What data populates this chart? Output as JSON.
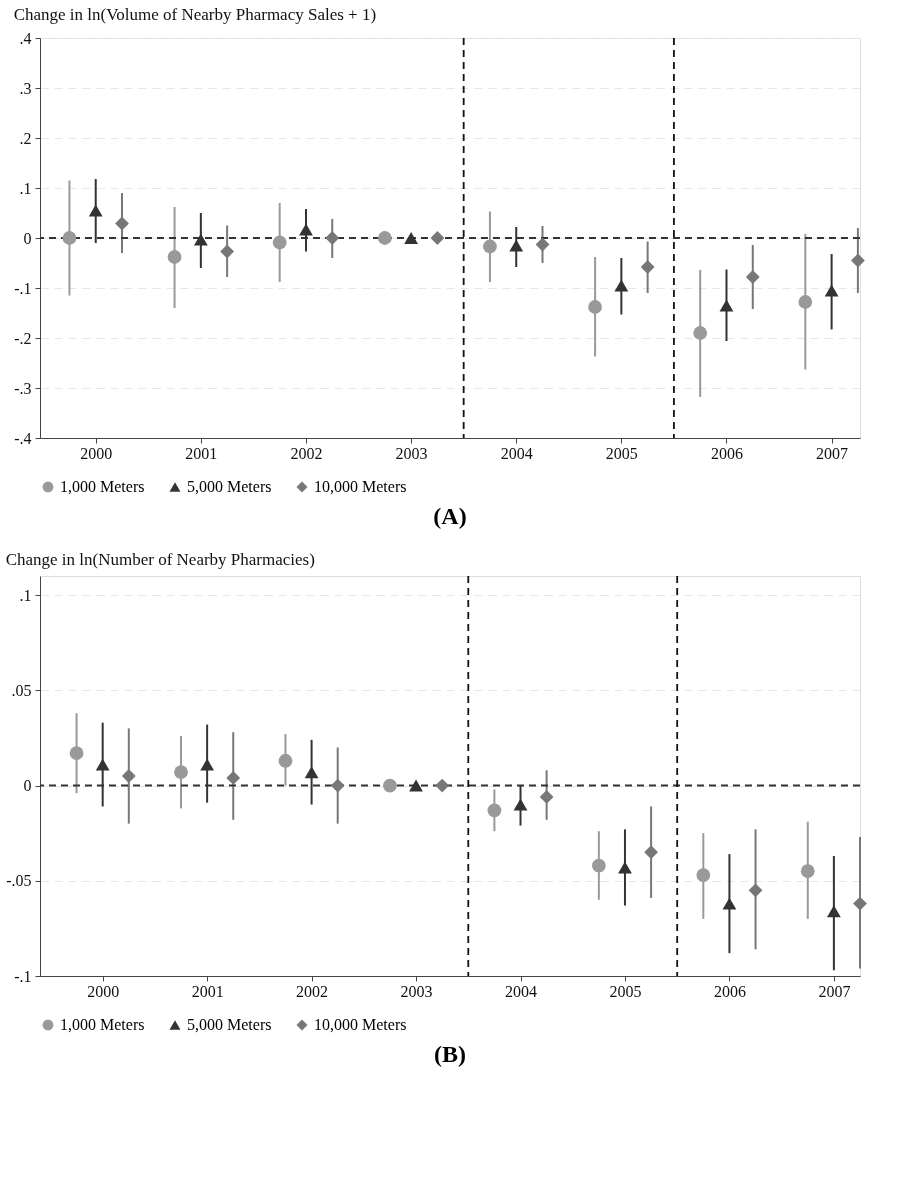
{
  "chart_data": [
    {
      "type": "scatter",
      "title": "Change in ln(Volume of Nearby Pharmacy Sales + 1)",
      "annotations": [
        "(A)"
      ],
      "xlim": [
        1999.47,
        2007.27
      ],
      "xticks": [
        2000,
        2001,
        2002,
        2003,
        2004,
        2005,
        2006,
        2007
      ],
      "ylim": [
        -0.4,
        0.4
      ],
      "yticks": [
        {
          "value": -0.4,
          "label": "-.4"
        },
        {
          "value": -0.3,
          "label": "-.3"
        },
        {
          "value": -0.2,
          "label": "-.2"
        },
        {
          "value": -0.1,
          "label": "-.1"
        },
        0,
        {
          "value": 0.1,
          "label": ".1"
        },
        {
          "value": 0.2,
          "label": ".2"
        },
        {
          "value": 0.3,
          "label": ".3"
        },
        {
          "value": 0.4,
          "label": ".4"
        }
      ],
      "grid": "y",
      "legend": "bottom",
      "ref_lines": [
        {
          "axis": "y",
          "value": 0,
          "line_style": "dashed",
          "color": "#333333"
        },
        {
          "axis": "x",
          "value": 2003.5,
          "line_style": "dashed",
          "color": "#111111"
        },
        {
          "axis": "x",
          "value": 2005.5,
          "line_style": "dashed",
          "color": "#111111"
        }
      ],
      "series": [
        {
          "name": "1,000 Meters",
          "color": "#999999",
          "marker": "circle",
          "x": [
            1999.75,
            2000.75,
            2001.75,
            2002.75,
            2003.75,
            2004.75,
            2005.75,
            2006.75
          ],
          "values": [
            0,
            -0.038,
            -0.009,
            0,
            -0.017,
            -0.138,
            -0.19,
            -0.128
          ],
          "errors": [
            [
              -0.115,
              0.115
            ],
            [
              -0.14,
              0.062
            ],
            [
              -0.088,
              0.07
            ],
            null,
            [
              -0.088,
              0.053
            ],
            [
              -0.237,
              -0.038
            ],
            [
              -0.318,
              -0.064
            ],
            [
              -0.263,
              0.008
            ]
          ]
        },
        {
          "name": "5,000 Meters",
          "color": "#333333",
          "marker": "triangle",
          "x": [
            2000,
            2001,
            2002,
            2003,
            2004,
            2005,
            2006,
            2007
          ],
          "values": [
            0.055,
            -0.003,
            0.017,
            0,
            -0.015,
            -0.095,
            -0.135,
            -0.105
          ],
          "errors": [
            [
              -0.01,
              0.118
            ],
            [
              -0.06,
              0.05
            ],
            [
              -0.027,
              0.058
            ],
            null,
            [
              -0.058,
              0.022
            ],
            [
              -0.153,
              -0.04
            ],
            [
              -0.206,
              -0.063
            ],
            [
              -0.183,
              -0.032
            ]
          ]
        },
        {
          "name": "10,000 Meters",
          "color": "#777777",
          "marker": "diamond",
          "x": [
            2000.25,
            2001.25,
            2002.25,
            2003.25,
            2004.25,
            2005.25,
            2006.25,
            2007.25
          ],
          "values": [
            0.029,
            -0.027,
            0,
            0,
            -0.013,
            -0.058,
            -0.078,
            -0.045
          ],
          "errors": [
            [
              -0.03,
              0.09
            ],
            [
              -0.078,
              0.025
            ],
            [
              -0.04,
              0.038
            ],
            null,
            [
              -0.05,
              0.024
            ],
            [
              -0.11,
              -0.007
            ],
            [
              -0.142,
              -0.014
            ],
            [
              -0.11,
              0.02
            ]
          ]
        }
      ]
    },
    {
      "type": "scatter",
      "title": "Change in ln(Number of Nearby Pharmacies)",
      "annotations": [
        "(B)"
      ],
      "xlim": [
        1999.4,
        2007.25
      ],
      "xticks": [
        2000,
        2001,
        2002,
        2003,
        2004,
        2005,
        2006,
        2007
      ],
      "ylim": [
        -0.1,
        0.11
      ],
      "yticks": [
        {
          "value": -0.1,
          "label": "-.1"
        },
        {
          "value": -0.05,
          "label": "-.05"
        },
        0,
        {
          "value": 0.05,
          "label": ".05"
        },
        {
          "value": 0.1,
          "label": ".1"
        }
      ],
      "grid": "y",
      "legend": "bottom",
      "ref_lines": [
        {
          "axis": "y",
          "value": 0,
          "line_style": "dashed",
          "color": "#333333"
        },
        {
          "axis": "x",
          "value": 2003.5,
          "line_style": "dashed",
          "color": "#111111"
        },
        {
          "axis": "x",
          "value": 2005.5,
          "line_style": "dashed",
          "color": "#111111"
        }
      ],
      "series": [
        {
          "name": "1,000 Meters",
          "color": "#999999",
          "marker": "circle",
          "x": [
            1999.75,
            2000.75,
            2001.75,
            2002.75,
            2003.75,
            2004.75,
            2005.75,
            2006.75
          ],
          "values": [
            0.017,
            0.007,
            0.013,
            0,
            -0.013,
            -0.042,
            -0.047,
            -0.045
          ],
          "errors": [
            [
              -0.004,
              0.038
            ],
            [
              -0.012,
              0.026
            ],
            [
              0,
              0.027
            ],
            null,
            [
              -0.024,
              -0.002
            ],
            [
              -0.06,
              -0.024
            ],
            [
              -0.07,
              -0.025
            ],
            [
              -0.07,
              -0.019
            ]
          ]
        },
        {
          "name": "5,000 Meters",
          "color": "#333333",
          "marker": "triangle",
          "x": [
            2000,
            2001,
            2002,
            2003,
            2004,
            2005,
            2006,
            2007
          ],
          "values": [
            0.011,
            0.011,
            0.007,
            0,
            -0.01,
            -0.043,
            -0.062,
            -0.066
          ],
          "errors": [
            [
              -0.011,
              0.033
            ],
            [
              -0.009,
              0.032
            ],
            [
              -0.01,
              0.024
            ],
            null,
            [
              -0.021,
              0
            ],
            [
              -0.063,
              -0.023
            ],
            [
              -0.088,
              -0.036
            ],
            [
              -0.097,
              -0.037
            ]
          ]
        },
        {
          "name": "10,000 Meters",
          "color": "#777777",
          "marker": "diamond",
          "x": [
            2000.25,
            2001.25,
            2002.25,
            2003.25,
            2004.25,
            2005.25,
            2006.25,
            2007.25
          ],
          "values": [
            0.005,
            0.004,
            0,
            0,
            -0.006,
            -0.035,
            -0.055,
            -0.062
          ],
          "errors": [
            [
              -0.02,
              0.03
            ],
            [
              -0.018,
              0.028
            ],
            [
              -0.02,
              0.02
            ],
            null,
            [
              -0.018,
              0.008
            ],
            [
              -0.059,
              -0.011
            ],
            [
              -0.086,
              -0.023
            ],
            [
              -0.096,
              -0.027
            ]
          ]
        }
      ]
    }
  ]
}
